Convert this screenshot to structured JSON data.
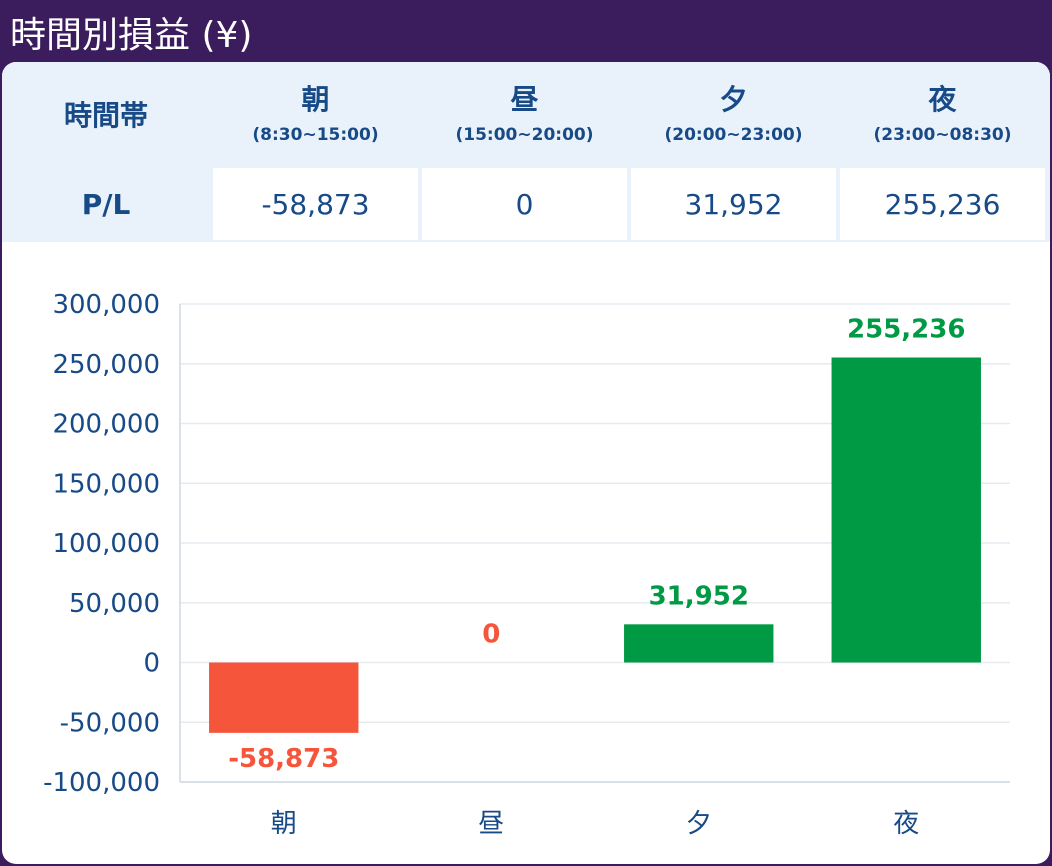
{
  "title": "時間別損益 (¥)",
  "table": {
    "header_label": "時間帯",
    "row_label": "P/L",
    "columns": [
      {
        "name": "朝",
        "range": "(8:30~15:00)",
        "value": "-58,873"
      },
      {
        "name": "昼",
        "range": "(15:00~20:00)",
        "value": "0"
      },
      {
        "name": "夕",
        "range": "(20:00~23:00)",
        "value": "31,952"
      },
      {
        "name": "夜",
        "range": "(23:00~08:30)",
        "value": "255,236"
      }
    ]
  },
  "colors": {
    "positive": "#009a44",
    "negative": "#f5553b",
    "text": "#174a87",
    "header_bg": "#e9f2fb",
    "frame": "#3b1d5e"
  },
  "chart_data": {
    "type": "bar",
    "categories": [
      "朝",
      "昼",
      "夕",
      "夜"
    ],
    "values": [
      -58873,
      0,
      31952,
      255236
    ],
    "data_labels": [
      "-58,873",
      "0",
      "31,952",
      "255,236"
    ],
    "ylim": [
      -100000,
      300000
    ],
    "yticks": [
      300000,
      250000,
      200000,
      150000,
      100000,
      50000,
      0,
      -50000,
      -100000
    ],
    "ytick_labels": [
      "300,000",
      "250,000",
      "200,000",
      "150,000",
      "100,000",
      "50,000",
      "0",
      "-50,000",
      "-100,000"
    ],
    "grid": true,
    "legend": "none"
  }
}
